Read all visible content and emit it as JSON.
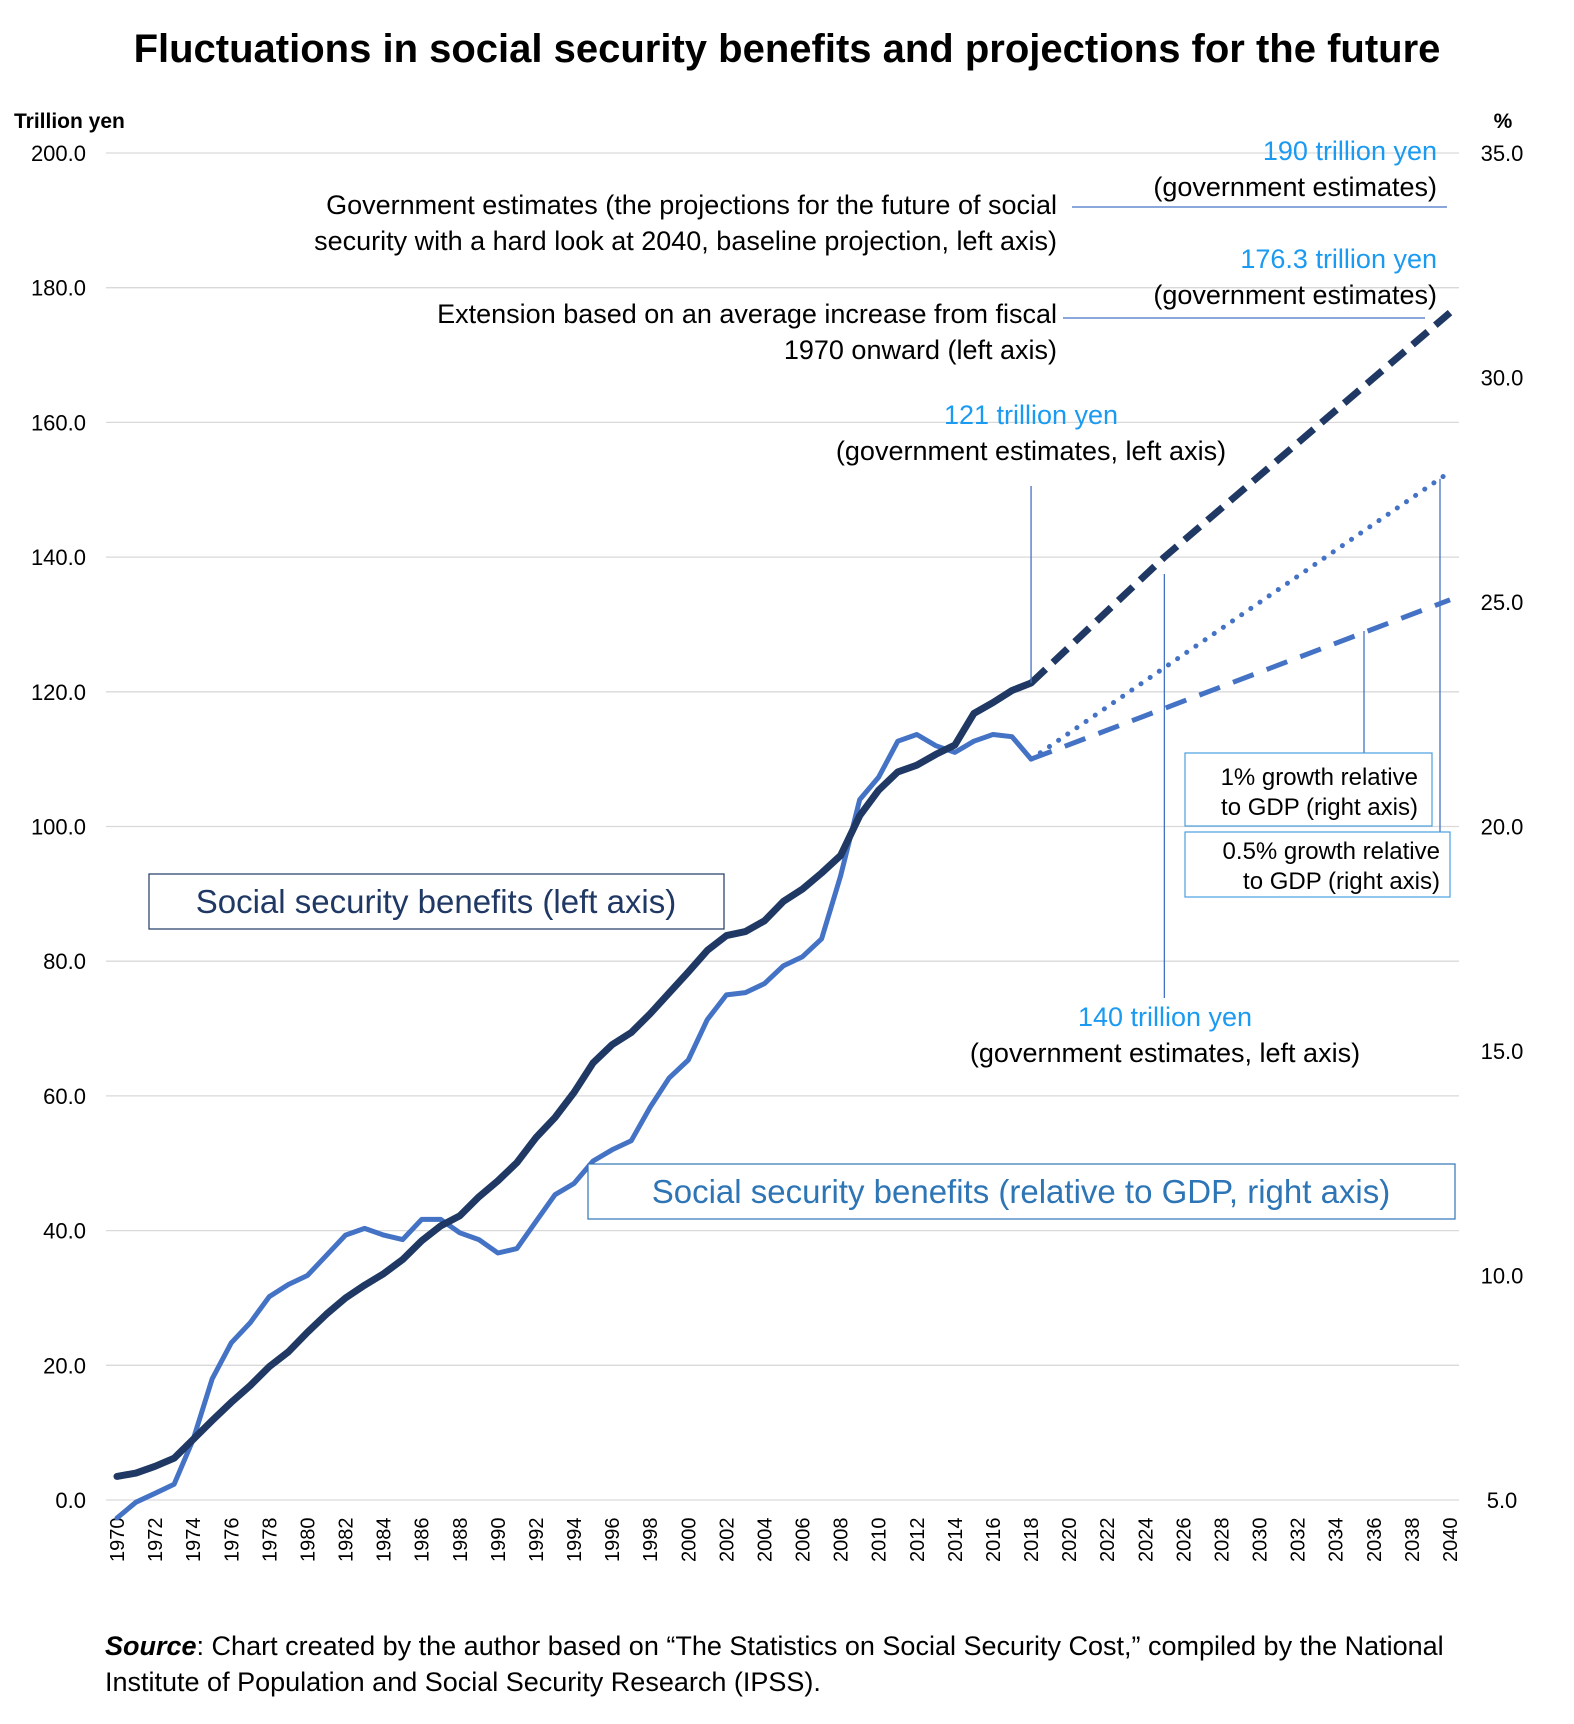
{
  "chart_data": {
    "type": "line",
    "title": "Fluctuations in social security benefits and projections for the future",
    "left_axis": {
      "label": "Trillion yen",
      "ylim": [
        0,
        200
      ],
      "ticks": [
        "0.0",
        "20.0",
        "40.0",
        "60.0",
        "80.0",
        "100.0",
        "120.0",
        "140.0",
        "160.0",
        "180.0",
        "200.0"
      ]
    },
    "right_axis": {
      "label": "%",
      "ylim": [
        5,
        35
      ],
      "ticks": [
        "5.0",
        "10.0",
        "15.0",
        "20.0",
        "25.0",
        "30.0",
        "35.0"
      ]
    },
    "x_ticks": [
      "1970",
      "1972",
      "1974",
      "1976",
      "1978",
      "1980",
      "1982",
      "1984",
      "1986",
      "1988",
      "1990",
      "1992",
      "1994",
      "1996",
      "1998",
      "2000",
      "2002",
      "2004",
      "2006",
      "2008",
      "2010",
      "2012",
      "2014",
      "2016",
      "2018",
      "2020",
      "2022",
      "2024",
      "2026",
      "2028",
      "2030",
      "2032",
      "2034",
      "2036",
      "2038",
      "2040"
    ],
    "grid": true,
    "series": [
      {
        "name": "Social security benefits (left axis)",
        "axis": "left",
        "color": "#1f3864",
        "style": "solid",
        "x": [
          1970,
          1971,
          1972,
          1973,
          1974,
          1975,
          1976,
          1977,
          1978,
          1979,
          1980,
          1981,
          1982,
          1983,
          1984,
          1985,
          1986,
          1987,
          1988,
          1989,
          1990,
          1991,
          1992,
          1993,
          1994,
          1995,
          1996,
          1997,
          1998,
          1999,
          2000,
          2001,
          2002,
          2003,
          2004,
          2005,
          2006,
          2007,
          2008,
          2009,
          2010,
          2011,
          2012,
          2013,
          2014,
          2015,
          2016,
          2017,
          2018
        ],
        "values": [
          3.5,
          4.0,
          5.0,
          6.2,
          9.0,
          11.8,
          14.5,
          17.0,
          19.8,
          22.0,
          24.9,
          27.6,
          30.0,
          31.9,
          33.6,
          35.7,
          38.5,
          40.7,
          42.2,
          45.0,
          47.4,
          50.1,
          53.8,
          56.8,
          60.5,
          64.9,
          67.6,
          69.4,
          72.2,
          75.3,
          78.4,
          81.6,
          83.8,
          84.4,
          86.0,
          88.9,
          90.7,
          93.1,
          95.7,
          101.6,
          105.4,
          108.1,
          109.1,
          110.7,
          112.1,
          116.8,
          118.4,
          120.2,
          121.3
        ]
      },
      {
        "name": "Social security benefits (relative to GDP, right axis)",
        "axis": "right",
        "color": "#4472c4",
        "style": "solid",
        "x": [
          1970,
          1971,
          1972,
          1973,
          1974,
          1975,
          1976,
          1977,
          1978,
          1979,
          1980,
          1981,
          1982,
          1983,
          1984,
          1985,
          1986,
          1987,
          1988,
          1989,
          1990,
          1991,
          1992,
          1993,
          1994,
          1995,
          1996,
          1997,
          1998,
          1999,
          2000,
          2001,
          2002,
          2003,
          2004,
          2005,
          2006,
          2007,
          2008,
          2009,
          2010,
          2011,
          2012,
          2013,
          2014,
          2015,
          2016,
          2017,
          2018
        ],
        "values": [
          4.6,
          4.95,
          5.15,
          5.35,
          6.35,
          7.7,
          8.5,
          8.95,
          9.53,
          9.8,
          10.0,
          10.45,
          10.9,
          11.05,
          10.9,
          10.8,
          11.25,
          11.25,
          10.95,
          10.8,
          10.5,
          10.6,
          11.2,
          11.8,
          12.05,
          12.55,
          12.8,
          13.0,
          13.75,
          14.4,
          14.8,
          15.7,
          16.25,
          16.3,
          16.5,
          16.9,
          17.1,
          17.5,
          18.9,
          20.6,
          21.1,
          21.9,
          22.05,
          21.8,
          21.65,
          21.9,
          22.05,
          22.0,
          21.5
        ]
      },
      {
        "name": "Extension based on an average increase from fiscal 1970 onward (left axis)",
        "axis": "left",
        "color": "#1f3864",
        "style": "dashed",
        "x": [
          2018,
          2025,
          2040
        ],
        "values": [
          121.3,
          140,
          176.3
        ]
      },
      {
        "name": "0.5% growth relative to GDP (right axis)",
        "axis": "right",
        "color": "#4472c4",
        "style": "dotted",
        "x": [
          2018,
          2040
        ],
        "values": [
          21.5,
          27.9
        ]
      },
      {
        "name": "1% growth relative to GDP (right axis)",
        "axis": "right",
        "color": "#4472c4",
        "style": "dashed",
        "x": [
          2018,
          2040
        ],
        "values": [
          21.5,
          25.05
        ]
      }
    ],
    "annotations": {
      "gov_2040_desc_line1": "Government estimates (the projections for the future of social",
      "gov_2040_desc_line2": "security with a hard look at 2040, baseline projection, left axis)",
      "gov_2040_value": "190 trillion yen",
      "gov_2040_sub": "(government estimates)",
      "ext_desc_line1": "Extension based on an average increase from fiscal",
      "ext_desc_line2": "1970 onward (left axis)",
      "ext_value": "176.3 trillion yen",
      "ext_sub": "(government estimates)",
      "v2018_value": "121 trillion yen",
      "v2018_sub": "(government estimates, left axis)",
      "v2025_value": "140 trillion yen",
      "v2025_sub": "(government estimates, left axis)",
      "box_1pct_line1": "1% growth relative",
      "box_1pct_line2": "to GDP (right axis)",
      "box_05pct_line1": "0.5% growth relative",
      "box_05pct_line2": "to GDP (right axis)"
    },
    "legend": {
      "left_series": "Social security benefits (left axis)",
      "right_series": "Social security benefits (relative to GDP, right axis)"
    }
  },
  "source": {
    "label": "Source",
    "text": ": Chart created by the author based on “The Statistics on Social Security Cost,” compiled by the National Institute of Population and Social Security Research (IPSS)."
  },
  "colors": {
    "dark_series": "#1f3864",
    "light_series": "#4472c4",
    "annotation_value": "#1a9af0",
    "leader_line": "#4472c4",
    "grid": "#d9d9d9"
  }
}
